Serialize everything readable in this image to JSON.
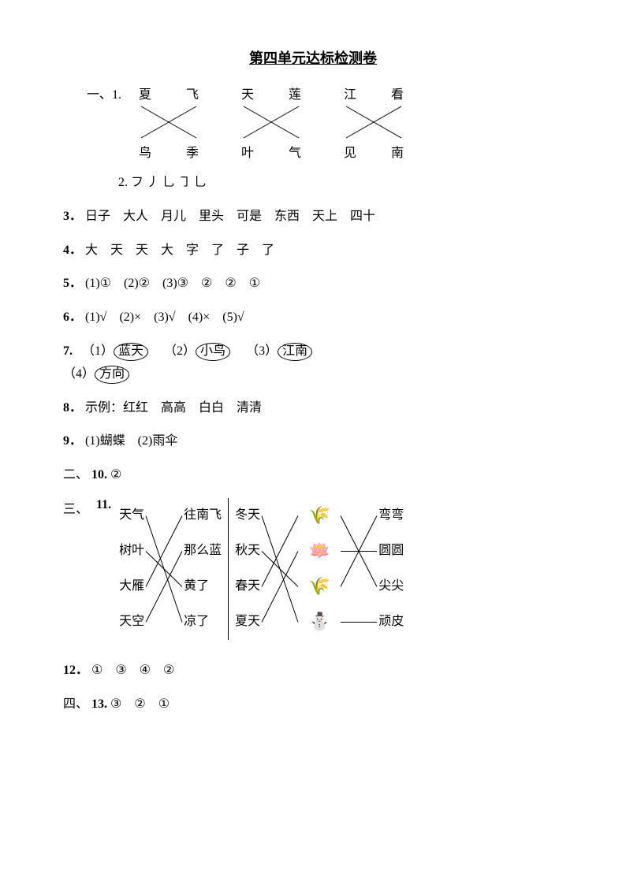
{
  "title": "第四单元达标检测卷",
  "q1": {
    "section": "一、1.",
    "groups": [
      {
        "top": [
          "夏",
          "飞"
        ],
        "bottom": [
          "鸟",
          "季"
        ]
      },
      {
        "top": [
          "天",
          "莲"
        ],
        "bottom": [
          "叶",
          "气"
        ]
      },
      {
        "top": [
          "江",
          "看"
        ],
        "bottom": [
          "见",
          "南"
        ]
      }
    ]
  },
  "q2": {
    "label": "2.",
    "content": "フ  丿 乚 ㇆ 乚"
  },
  "q3": {
    "label": "3．",
    "content": "日子　大人　月儿　里头　可是　东西　天上　四十"
  },
  "q4": {
    "label": "4．",
    "content": "大　天　天　大　字　了　子　了"
  },
  "q5": {
    "label": "5．",
    "content": "(1)①　(2)②　(3)③　②　②　①"
  },
  "q6": {
    "label": "6．",
    "content": "(1)√　(2)×　(3)√　(4)×　(5)√"
  },
  "q7": {
    "label": "7.",
    "items": [
      {
        "num": "（1）",
        "word": "蓝天"
      },
      {
        "num": "（2）",
        "word": "小鸟"
      },
      {
        "num": "（3）",
        "word": "江南"
      },
      {
        "num": "（4）",
        "word": "方向"
      }
    ]
  },
  "q8": {
    "label": "8．",
    "content": "示例：红红　高高　白白　清清"
  },
  "q9": {
    "label": "9．",
    "content": "(1)蝴蝶　(2)雨伞"
  },
  "q10": {
    "section": "二、",
    "label": "10.",
    "content": "②"
  },
  "q11": {
    "section": "三、",
    "label": "11.",
    "left1": [
      "天气",
      "树叶",
      "大雁",
      "天空"
    ],
    "left2": [
      "往南飞",
      "那么蓝",
      "黄了",
      "凉了"
    ],
    "right1": [
      "冬天",
      "秋天",
      "春天",
      "夏天"
    ],
    "right2": [
      "弯弯",
      "圆圆",
      "尖尖",
      "顽皮"
    ],
    "pics": [
      "🌾",
      "🪷",
      "🌾",
      "⛄"
    ],
    "leftEdges": [
      [
        0,
        3
      ],
      [
        1,
        2
      ],
      [
        2,
        0
      ],
      [
        3,
        1
      ]
    ],
    "rightEdgesA": [
      [
        0,
        3
      ],
      [
        1,
        2
      ],
      [
        2,
        0
      ],
      [
        3,
        1
      ]
    ],
    "rightEdgesB": [
      [
        0,
        2
      ],
      [
        1,
        1
      ],
      [
        2,
        0
      ],
      [
        3,
        3
      ]
    ]
  },
  "q12": {
    "label": "12．",
    "content": "①　③　④　②"
  },
  "q13": {
    "section": "四、",
    "label": "13.",
    "content": "③　②　①"
  },
  "colors": {
    "text": "#000000",
    "bg": "#ffffff",
    "line": "#000000"
  }
}
